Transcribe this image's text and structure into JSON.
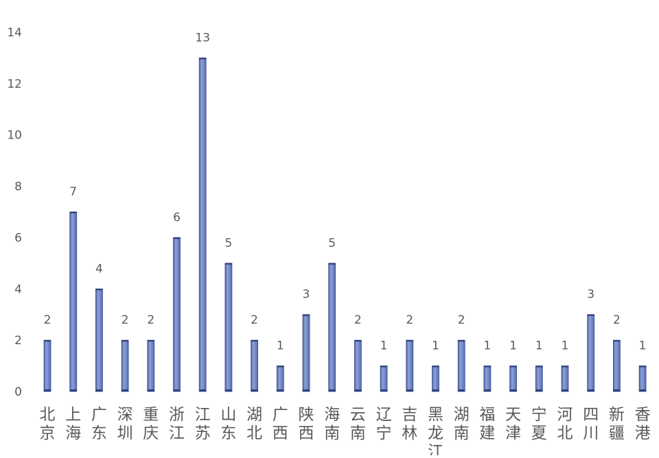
{
  "chart_data": {
    "type": "bar",
    "title": "",
    "xlabel": "",
    "ylabel": "",
    "ylim": [
      0,
      14
    ],
    "yticks": [
      0,
      2,
      4,
      6,
      8,
      10,
      12,
      14
    ],
    "grid": false,
    "legend": "none",
    "bar_color": "#7a8ec8",
    "bar_edge_color": "#3b4f8f",
    "categories": [
      "北京",
      "上海",
      "广东",
      "深圳",
      "重庆",
      "浙江",
      "江苏",
      "山东",
      "湖北",
      "广西",
      "陕西",
      "海南",
      "云南",
      "辽宁",
      "吉林",
      "黑龙江",
      "湖南",
      "福建",
      "天津",
      "宁夏",
      "河北",
      "四川",
      "新疆",
      "香港"
    ],
    "values": [
      2,
      7,
      4,
      2,
      2,
      6,
      13,
      5,
      2,
      1,
      3,
      5,
      2,
      1,
      2,
      1,
      2,
      1,
      1,
      1,
      1,
      3,
      2,
      1
    ],
    "data_labels": [
      "2",
      "7",
      "4",
      "2",
      "2",
      "6",
      "13",
      "5",
      "2",
      "1",
      "3",
      "5",
      "2",
      "1",
      "2",
      "1",
      "2",
      "1",
      "1",
      "1",
      "1",
      "3",
      "2",
      "1"
    ]
  }
}
